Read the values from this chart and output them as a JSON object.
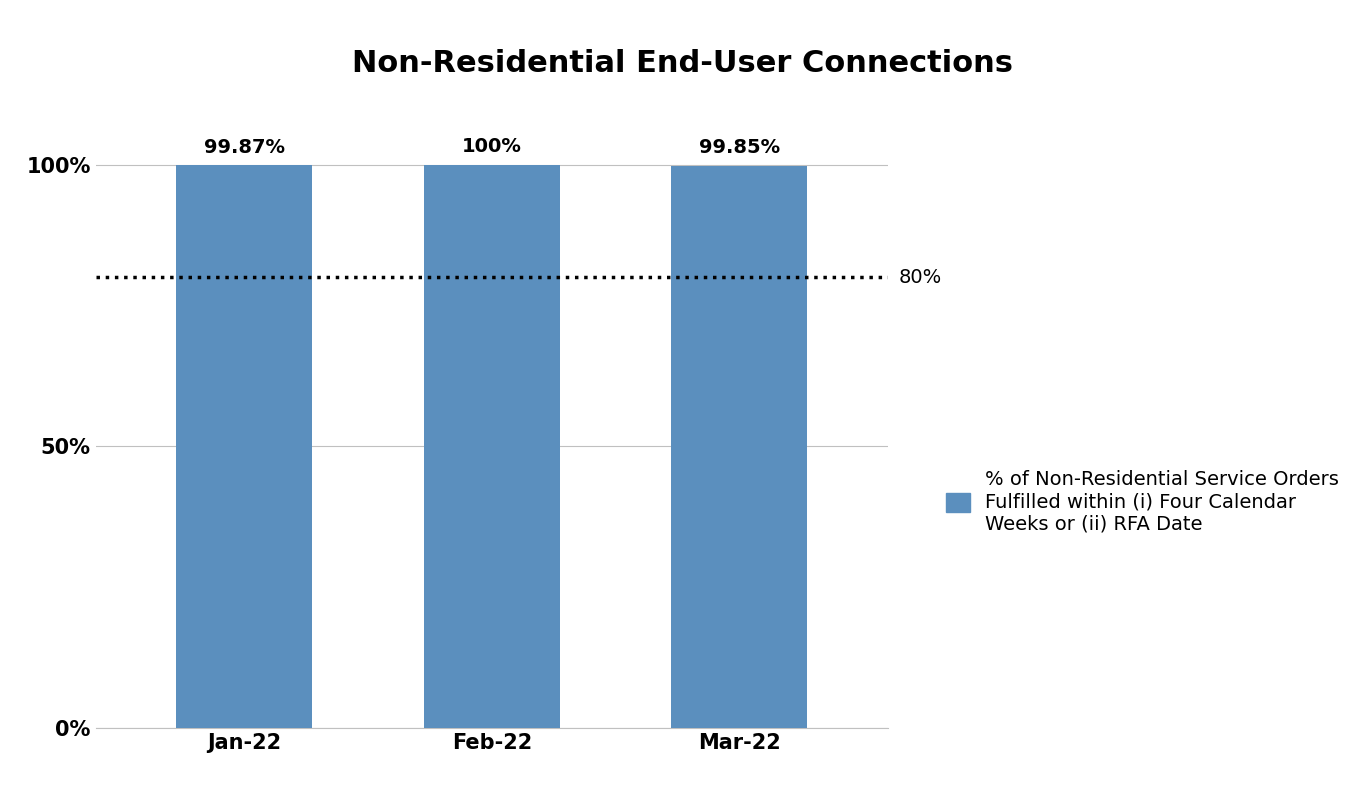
{
  "title": "Non-Residential End-User Connections",
  "categories": [
    "Jan-22",
    "Feb-22",
    "Mar-22"
  ],
  "values": [
    99.87,
    100.0,
    99.85
  ],
  "bar_labels": [
    "99.87%",
    "100%",
    "99.85%"
  ],
  "bar_color": "#5b8fbe",
  "threshold_value": 80,
  "threshold_label": "80%",
  "ylim": [
    0,
    112
  ],
  "yticks": [
    0,
    50,
    100
  ],
  "ytick_labels": [
    "0%",
    "50%",
    "100%"
  ],
  "legend_label": "% of Non-Residential Service Orders\nFulfilled within (i) Four Calendar\nWeeks or (ii) RFA Date",
  "background_color": "#ffffff",
  "title_fontsize": 22,
  "label_fontsize": 14,
  "tick_fontsize": 15,
  "legend_fontsize": 14,
  "bar_label_fontsize": 14,
  "bar_width": 0.55
}
